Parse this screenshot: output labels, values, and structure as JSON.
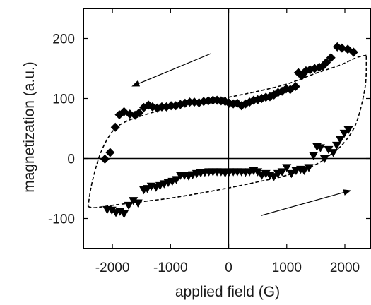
{
  "chart_data": {
    "type": "scatter",
    "title": "",
    "xlabel": "applied field (G)",
    "ylabel": "magnetization (a.u.)",
    "xlim": [
      -2500,
      2450
    ],
    "ylim": [
      -150,
      250
    ],
    "x_ticks": [
      -2000,
      -1000,
      0,
      1000,
      2000
    ],
    "x_tick_labels": [
      "-2000",
      "-1000",
      "0",
      "1000",
      "2000"
    ],
    "y_ticks": [
      -100,
      0,
      100,
      200
    ],
    "y_tick_labels": [
      "-100",
      "0",
      "100",
      "200"
    ],
    "grid": false,
    "zero_lines": true,
    "series": [
      {
        "marker": "diamond",
        "color": "#000000",
        "x": [
          2150,
          2050,
          1950,
          1870,
          1760,
          1680,
          1620,
          1560,
          1480,
          1400,
          1330,
          1260,
          1200,
          1150,
          1060,
          990,
          920,
          850,
          780,
          710,
          640,
          570,
          500,
          430,
          360,
          290,
          220,
          150,
          80,
          10,
          -60,
          -130,
          -200,
          -270,
          -350,
          -430,
          -510,
          -590,
          -670,
          -750,
          -830,
          -910,
          -990,
          -1070,
          -1150,
          -1230,
          -1310,
          -1380,
          -1460,
          -1540,
          -1610,
          -1700,
          -1800,
          -1880,
          -1950,
          -2040,
          -2130
        ],
        "y": [
          177,
          182,
          184,
          186,
          168,
          160,
          154,
          152,
          150,
          148,
          146,
          138,
          143,
          120,
          115,
          116,
          112,
          110,
          106,
          103,
          102,
          100,
          98,
          97,
          94,
          91,
          88,
          92,
          91,
          92,
          95,
          96,
          97,
          97,
          96,
          95,
          93,
          94,
          94,
          92,
          90,
          88,
          88,
          86,
          86,
          84,
          86,
          89,
          85,
          76,
          72,
          74,
          78,
          73,
          52,
          10,
          -1
        ]
      },
      {
        "marker": "triangle-down",
        "color": "#000000",
        "x": [
          2060,
          1990,
          1920,
          1860,
          1800,
          1720,
          1650,
          1580,
          1520,
          1460,
          1380,
          1300,
          1240,
          1160,
          1080,
          1000,
          920,
          850,
          780,
          710,
          640,
          570,
          500,
          430,
          360,
          290,
          220,
          150,
          80,
          10,
          -60,
          -130,
          -200,
          -270,
          -340,
          -410,
          -480,
          -550,
          -620,
          -690,
          -760,
          -830,
          -900,
          -970,
          -1040,
          -1110,
          -1180,
          -1250,
          -1330,
          -1400,
          -1460,
          -1560,
          -1640,
          -1720,
          -1800,
          -1870,
          -1940,
          -2010,
          -2090
        ],
        "y": [
          48,
          42,
          32,
          22,
          10,
          15,
          0,
          18,
          20,
          5,
          -15,
          -20,
          -18,
          -20,
          -25,
          -15,
          -22,
          -25,
          -30,
          -28,
          -25,
          -28,
          -22,
          -20,
          -22,
          -23,
          -22,
          -22,
          -22,
          -22,
          -24,
          -22,
          -22,
          -22,
          -22,
          -23,
          -24,
          -25,
          -27,
          -29,
          -28,
          -28,
          -35,
          -38,
          -40,
          -42,
          -45,
          -48,
          -46,
          -50,
          -52,
          -74,
          -70,
          -78,
          -92,
          -88,
          -90,
          -86,
          -85
        ]
      }
    ],
    "fitted_curve": {
      "style": "dashed",
      "color": "#000000",
      "upper_branch": {
        "x": [
          2370,
          2200,
          1900,
          1500,
          1000,
          500,
          0,
          -500,
          -1000,
          -1500,
          -1800,
          -2000,
          -2200,
          -2350,
          -2420
        ],
        "y": [
          172,
          168,
          155,
          142,
          124,
          112,
          102,
          93,
          85,
          71,
          60,
          45,
          10,
          -40,
          -80
        ]
      },
      "lower_branch": {
        "x": [
          -2420,
          -2300,
          -2000,
          -1500,
          -1000,
          -500,
          0,
          500,
          1000,
          1500,
          1800,
          2000,
          2200,
          2350,
          2370
        ],
        "y": [
          -80,
          -82,
          -78,
          -72,
          -66,
          -58,
          -49,
          -39,
          -28,
          -10,
          10,
          28,
          60,
          120,
          172
        ]
      }
    },
    "annotations": [
      {
        "type": "arrow",
        "from": [
          -300,
          175
        ],
        "to": [
          -1670,
          120
        ]
      },
      {
        "type": "arrow",
        "from": [
          560,
          -95
        ],
        "to": [
          2110,
          -53
        ]
      }
    ]
  }
}
